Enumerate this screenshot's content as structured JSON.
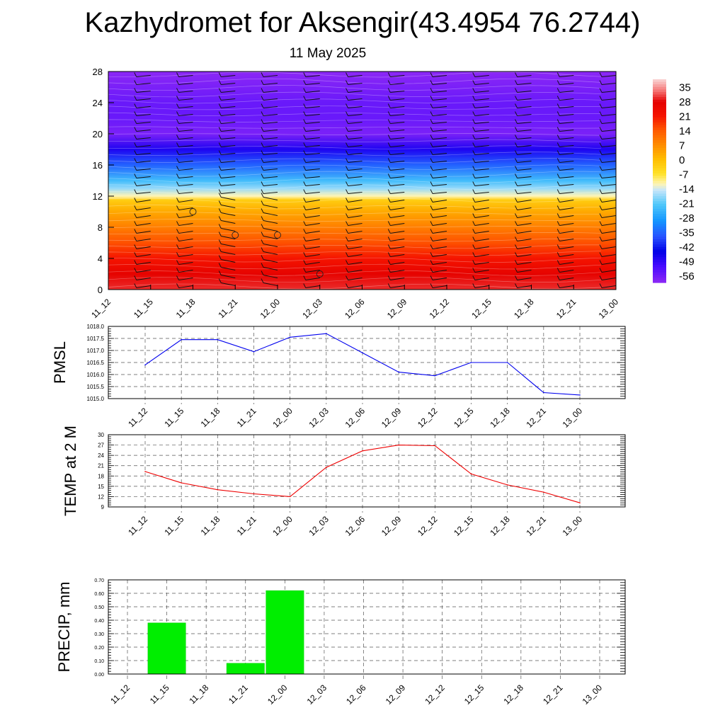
{
  "header": {
    "title": "Kazhydromet for Aksengir(43.4954 76.2744)",
    "subtitle": "11 May 2025"
  },
  "colors": {
    "pmsl_line": "#0000ee",
    "temp_line": "#ee0000",
    "precip_bar": "#00ee00",
    "precip_bar_edge": "#00cc00"
  },
  "chart_data": [
    {
      "type": "heatmap",
      "title": "",
      "xlabel": "",
      "ylabel": "",
      "x": [
        "11_12",
        "11_15",
        "11_18",
        "11_21",
        "12_00",
        "12_03",
        "12_06",
        "12_09",
        "12_12",
        "12_15",
        "12_18",
        "12_21",
        "13_00"
      ],
      "y_ticks": [
        0,
        4,
        8,
        12,
        16,
        20,
        24,
        28
      ],
      "ylim": [
        0,
        28
      ],
      "colorbar": {
        "labels": [
          35,
          28,
          21,
          14,
          7,
          0,
          -7,
          -14,
          -21,
          -28,
          -35,
          -42,
          -49,
          -56
        ],
        "range": [
          -60,
          39
        ]
      },
      "level_temperature_profile": [
        {
          "level": 0,
          "value": 30
        },
        {
          "level": 2,
          "value": 27
        },
        {
          "level": 4,
          "value": 21
        },
        {
          "level": 6,
          "value": 15
        },
        {
          "level": 8,
          "value": 9
        },
        {
          "level": 10,
          "value": 3
        },
        {
          "level": 11.5,
          "value": -3
        },
        {
          "level": 12,
          "value": -12
        },
        {
          "level": 13,
          "value": -18
        },
        {
          "level": 14,
          "value": -24
        },
        {
          "level": 16,
          "value": -36
        },
        {
          "level": 18,
          "value": -48
        },
        {
          "level": 20,
          "value": -58
        },
        {
          "level": 22,
          "value": -56
        },
        {
          "level": 24,
          "value": -56
        },
        {
          "level": 28,
          "value": -60
        }
      ],
      "wind_barbs": "shown",
      "grid": false
    },
    {
      "type": "line",
      "ylabel": "PMSL",
      "categories": [
        "11_12",
        "11_15",
        "11_18",
        "11_21",
        "12_00",
        "12_03",
        "12_06",
        "12_09",
        "12_12",
        "12_15",
        "12_18",
        "12_21",
        "13_00"
      ],
      "values": [
        1016.4,
        1017.45,
        1017.45,
        1016.95,
        1017.55,
        1017.7,
        1016.9,
        1016.1,
        1015.95,
        1016.5,
        1016.5,
        1015.25,
        1015.15
      ],
      "ylim": [
        1015.0,
        1018.0
      ],
      "yticks": [
        "1015.0",
        "1015.5",
        "1016.0",
        "1016.5",
        "1017.0",
        "1017.5",
        "1018.0"
      ],
      "grid": true
    },
    {
      "type": "line",
      "ylabel": "TEMP at 2 M",
      "categories": [
        "11_12",
        "11_15",
        "11_18",
        "11_21",
        "12_00",
        "12_03",
        "12_06",
        "12_09",
        "12_12",
        "12_15",
        "12_18",
        "12_21",
        "13_00"
      ],
      "values": [
        19.3,
        16.0,
        14.0,
        12.8,
        12.0,
        20.5,
        25.3,
        27.0,
        26.8,
        18.6,
        15.4,
        13.3,
        10.2
      ],
      "ylim": [
        9,
        30
      ],
      "yticks": [
        "9",
        "12",
        "15",
        "18",
        "21",
        "24",
        "27",
        "30"
      ],
      "grid": true
    },
    {
      "type": "bar",
      "ylabel": "PRECIP, mm",
      "categories": [
        "11_12",
        "11_15",
        "11_18",
        "11_21",
        "12_00",
        "12_03",
        "12_06",
        "12_09",
        "12_12",
        "12_15",
        "12_18",
        "12_21",
        "13_00"
      ],
      "values": [
        0,
        0.38,
        0,
        0.08,
        0.62,
        0,
        0,
        0,
        0,
        0,
        0,
        0,
        0
      ],
      "ylim": [
        0,
        0.7
      ],
      "yticks": [
        "0.00",
        "0.10",
        "0.20",
        "0.30",
        "0.40",
        "0.50",
        "0.60",
        "0.70"
      ],
      "grid": true
    }
  ]
}
